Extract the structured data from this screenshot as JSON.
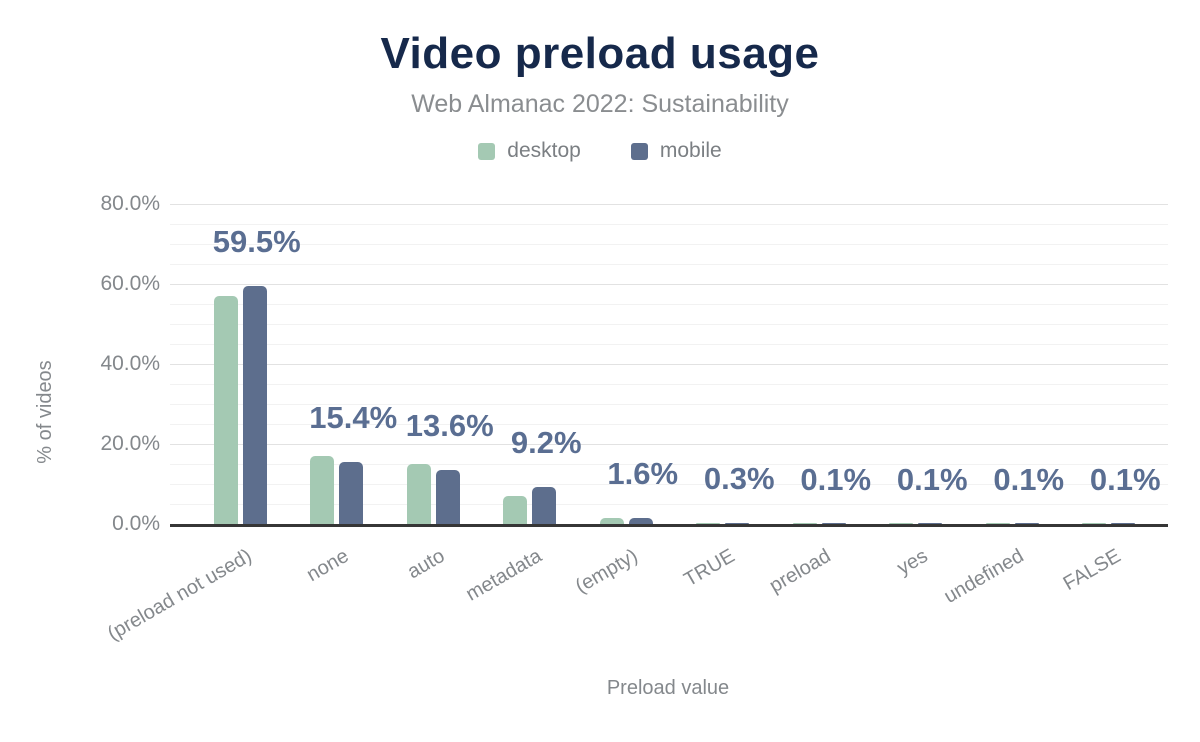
{
  "chart_data": {
    "type": "bar",
    "title": "Video preload usage",
    "subtitle": "Web Almanac 2022: Sustainability",
    "xlabel": "Preload value",
    "ylabel": "% of videos",
    "categories": [
      "(preload not used)",
      "none",
      "auto",
      "metadata",
      "(empty)",
      "TRUE",
      "preload",
      "yes",
      "undefined",
      "FALSE"
    ],
    "series": [
      {
        "name": "desktop",
        "color": "#a4c9b3",
        "values": [
          57.0,
          17.0,
          14.9,
          6.9,
          1.5,
          0.2,
          0.1,
          0.1,
          0.1,
          0.1
        ]
      },
      {
        "name": "mobile",
        "color": "#5d6e8d",
        "values": [
          59.5,
          15.4,
          13.6,
          9.2,
          1.6,
          0.3,
          0.1,
          0.1,
          0.1,
          0.1
        ]
      }
    ],
    "data_labels": {
      "labelled_series": "mobile",
      "values": [
        "59.5%",
        "15.4%",
        "13.6%",
        "9.2%",
        "1.6%",
        "0.3%",
        "0.1%",
        "0.1%",
        "0.1%",
        "0.1%"
      ]
    },
    "y_ticks": [
      "0.0%",
      "20.0%",
      "40.0%",
      "60.0%",
      "80.0%"
    ],
    "ylim": [
      0,
      80
    ],
    "grid": {
      "major_step": 20,
      "minor_step": 5,
      "visible": true
    },
    "legend_position": "top",
    "colors": {
      "title": "#16294b",
      "subtitle": "#8a8d90",
      "axis_text": "#84888c",
      "data_label": "#5a6e92",
      "axis_line": "#363636"
    }
  }
}
